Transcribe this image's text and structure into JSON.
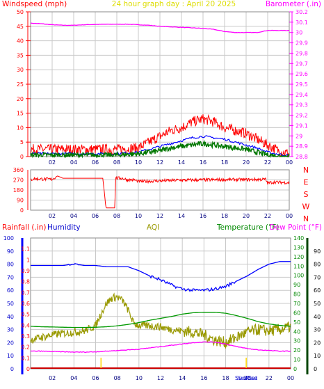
{
  "header": {
    "windspeed_label": "Windspeed (mph)",
    "title": "24 hour graph day : April 20 2025",
    "barometer_label": "Barometer (.in)"
  },
  "lower_header": {
    "rainfall_label": "Rainfall (.in)",
    "humidity_label": "Humidity",
    "aqi_label": "AQI",
    "temperature_label": "Temperature (°F)",
    "dewpoint_label": "Dew Point (°F)"
  },
  "direction_labels": [
    "N",
    "W",
    "S",
    "E",
    "N"
  ],
  "sun_labels": {
    "sunrise": "SunRise",
    "sunset": "SunSet"
  },
  "colors": {
    "red": "#ff0000",
    "magenta": "#ff00ff",
    "blue": "#0000ff",
    "dark_green": "#007700",
    "green": "#009900",
    "olive": "#999900",
    "yellow": "#ffd700",
    "dark_red": "#cc0000",
    "grid": "#c8c8c8"
  },
  "chart_data": [
    {
      "type": "line",
      "x_ticks": [
        "02",
        "04",
        "06",
        "08",
        "10",
        "12",
        "14",
        "16",
        "18",
        "20",
        "22",
        "00"
      ],
      "y_left": {
        "label": "Windspeed (mph)",
        "ylim": [
          0,
          50
        ],
        "ticks": [
          "0",
          "5",
          "10",
          "15",
          "20",
          "25",
          "30",
          "35",
          "40",
          "45",
          "50"
        ]
      },
      "y_right": {
        "label": "Barometer (.in)",
        "ylim": [
          28.8,
          30.2
        ],
        "ticks": [
          "28.8",
          "28.9",
          "29",
          "29.1",
          "29.2",
          "29.3",
          "29.4",
          "29.5",
          "29.6",
          "29.7",
          "29.8",
          "29.9",
          "30",
          "30.1",
          "30.2"
        ]
      },
      "grid": true,
      "series": [
        {
          "name": "Barometer (.in)",
          "axis": "right",
          "color": "#ff00ff",
          "x": [
            0,
            1,
            2,
            3,
            4,
            5,
            6,
            7,
            8,
            9,
            10,
            11,
            12,
            13,
            14,
            15,
            16,
            17,
            18,
            19,
            20,
            21,
            22,
            23,
            24
          ],
          "values": [
            30.09,
            30.085,
            30.075,
            30.07,
            30.07,
            30.075,
            30.078,
            30.08,
            30.08,
            30.08,
            30.075,
            30.07,
            30.06,
            30.055,
            30.05,
            30.045,
            30.04,
            30.03,
            30.01,
            30.0,
            30.0,
            30.0,
            30.02,
            30.02,
            30.02
          ]
        },
        {
          "name": "Wind gust",
          "axis": "left",
          "color": "#ff0000",
          "x": [
            0,
            2,
            4,
            6,
            8,
            10,
            11,
            12,
            13,
            14,
            15,
            16,
            17,
            18,
            19,
            20,
            21,
            22,
            23,
            24
          ],
          "values": [
            2.5,
            2.5,
            2.5,
            2.5,
            2.5,
            3,
            5,
            7,
            9,
            10,
            12,
            13,
            12,
            10,
            9,
            8,
            6,
            4,
            2,
            1
          ]
        },
        {
          "name": "Wind average",
          "axis": "left",
          "color": "#0000ff",
          "x": [
            0,
            2,
            4,
            6,
            8,
            10,
            11,
            12,
            13,
            14,
            15,
            16,
            17,
            18,
            19,
            20,
            21,
            22,
            23,
            24
          ],
          "values": [
            1,
            1,
            1,
            1,
            1,
            1.5,
            2.5,
            3.5,
            4.5,
            5.5,
            6.5,
            7,
            6.5,
            6,
            5,
            4,
            3,
            1.5,
            0.8,
            0.4
          ]
        },
        {
          "name": "Wind speed",
          "axis": "left",
          "color": "#007700",
          "x": [
            0,
            2,
            4,
            6,
            8,
            10,
            11,
            12,
            13,
            14,
            15,
            16,
            17,
            18,
            19,
            20,
            21,
            22,
            23,
            24
          ],
          "values": [
            0.5,
            0.5,
            0.5,
            0.5,
            0.5,
            1,
            1.5,
            2,
            3,
            3.5,
            4,
            4.5,
            4,
            3.5,
            3,
            2.5,
            1.5,
            0.6,
            0.2,
            0
          ]
        }
      ]
    },
    {
      "type": "line",
      "x_ticks": [
        "02",
        "04",
        "06",
        "08",
        "10",
        "12",
        "14",
        "16",
        "18",
        "20",
        "22",
        "00"
      ],
      "y_left": {
        "ylim": [
          0,
          360
        ],
        "ticks": [
          "0",
          "90",
          "180",
          "270",
          "360"
        ]
      },
      "y_right_labels": [
        "N",
        "W",
        "S",
        "E",
        "N"
      ],
      "grid": true,
      "series": [
        {
          "name": "Wind direction",
          "color": "#ff0000",
          "x": [
            0,
            0.3,
            2,
            2.5,
            3,
            4,
            5,
            6,
            6.7,
            7.0,
            7.1,
            7.8,
            7.9,
            8.5,
            9,
            9.6,
            10,
            12,
            14,
            16,
            18,
            20,
            21.8,
            22,
            22.5,
            24
          ],
          "values": [
            270,
            280,
            275,
            305,
            285,
            285,
            285,
            285,
            285,
            20,
            20,
            20,
            285,
            285,
            270,
            270,
            255,
            262,
            268,
            270,
            272,
            272,
            275,
            240,
            250,
            245
          ]
        }
      ]
    },
    {
      "type": "line",
      "x_ticks": [
        "02",
        "04",
        "06",
        "08",
        "10",
        "12",
        "14",
        "16",
        "18",
        "20",
        "22",
        "00"
      ],
      "y_humidity": {
        "label": "Humidity",
        "ylim": [
          0,
          100
        ],
        "ticks": [
          "0",
          "10",
          "20",
          "30",
          "40",
          "50",
          "60",
          "70",
          "80",
          "90",
          "100"
        ]
      },
      "y_rainfall": {
        "label": "Rainfall (.in)",
        "ylim": [
          0,
          1.2
        ],
        "ticks": [
          "0",
          "0.1",
          "0.2",
          "0.3",
          "0.4",
          "0.5",
          "0.6",
          "0.7",
          "0.8",
          "0.9",
          "1",
          "1.1"
        ]
      },
      "y_temperature": {
        "label": "Temperature (°F)",
        "ylim": [
          0,
          140
        ],
        "ticks": [
          "0",
          "10",
          "20",
          "30",
          "40",
          "50",
          "60",
          "70",
          "80",
          "90",
          "100",
          "110",
          "120",
          "130",
          "140"
        ]
      },
      "y_dewpoint": {
        "label": "Dew Point (°F)",
        "ticks": [
          "0",
          "10",
          "20",
          "30",
          "40",
          "50",
          "60",
          "70",
          "80",
          "90"
        ]
      },
      "grid": true,
      "series": [
        {
          "name": "Humidity",
          "axis": "humidity",
          "color": "#0000ff",
          "x": [
            0,
            1,
            2,
            3,
            4,
            5,
            6,
            7,
            8,
            9,
            10,
            11,
            12,
            13,
            14,
            15,
            16,
            17,
            18,
            19,
            20,
            21,
            22,
            23,
            24
          ],
          "values": [
            79,
            79,
            79,
            79,
            80,
            79,
            79,
            78,
            78,
            78,
            75,
            71,
            68,
            64,
            61,
            60,
            60,
            61,
            63,
            67,
            71,
            76,
            80,
            82,
            82
          ]
        },
        {
          "name": "AQI",
          "axis": "humidity",
          "color": "#999900",
          "x": [
            0,
            1,
            2,
            3,
            4,
            5,
            6,
            6.5,
            7,
            7.5,
            8,
            8.5,
            9,
            9.5,
            10,
            11,
            12,
            13,
            14,
            15,
            16,
            17,
            18,
            19,
            20,
            21,
            22,
            23,
            24
          ],
          "values": [
            22,
            24,
            26,
            27,
            28,
            29,
            33,
            42,
            50,
            54,
            55,
            52,
            45,
            35,
            33,
            33,
            32,
            30,
            29,
            28,
            26,
            22,
            20,
            24,
            28,
            30,
            29,
            30,
            32
          ]
        },
        {
          "name": "Temperature (°F)",
          "axis": "temperature",
          "color": "#009900",
          "x": [
            0,
            1,
            2,
            3,
            4,
            5,
            6,
            7,
            8,
            9,
            10,
            11,
            12,
            13,
            14,
            15,
            16,
            17,
            18,
            19,
            20,
            21,
            22,
            23,
            24
          ],
          "values": [
            45.5,
            45,
            44.8,
            44.5,
            44.3,
            44.3,
            44.5,
            45,
            46,
            47.5,
            49.5,
            52,
            54,
            56,
            58.5,
            60,
            60.5,
            60.5,
            59.5,
            57,
            54,
            50.5,
            48,
            46.5,
            45.5
          ]
        },
        {
          "name": "Dew Point (°F)",
          "axis": "humidity",
          "color": "#ff00ff",
          "x": [
            0,
            1,
            2,
            3,
            4,
            5,
            6,
            7,
            8,
            9,
            10,
            11,
            12,
            13,
            14,
            15,
            16,
            17,
            18,
            19,
            20,
            21,
            22,
            23,
            24
          ],
          "values": [
            13.5,
            13.5,
            13.2,
            13,
            12.8,
            12.8,
            13,
            13.5,
            14,
            14.5,
            15,
            16,
            17,
            18,
            19,
            20,
            20.5,
            20.5,
            19,
            17,
            15.5,
            14.5,
            14,
            13.5,
            13.5
          ]
        },
        {
          "name": "Rainfall (.in)",
          "axis": "rainfall",
          "color": "#cc0000",
          "x": [
            0,
            24
          ],
          "values": [
            0,
            0
          ]
        }
      ],
      "markers": [
        {
          "label": "SunRise",
          "x": 6.5,
          "color": "#ffd700"
        },
        {
          "label": "SunSet",
          "x": 19.9,
          "color": "#ffd700"
        }
      ]
    }
  ]
}
